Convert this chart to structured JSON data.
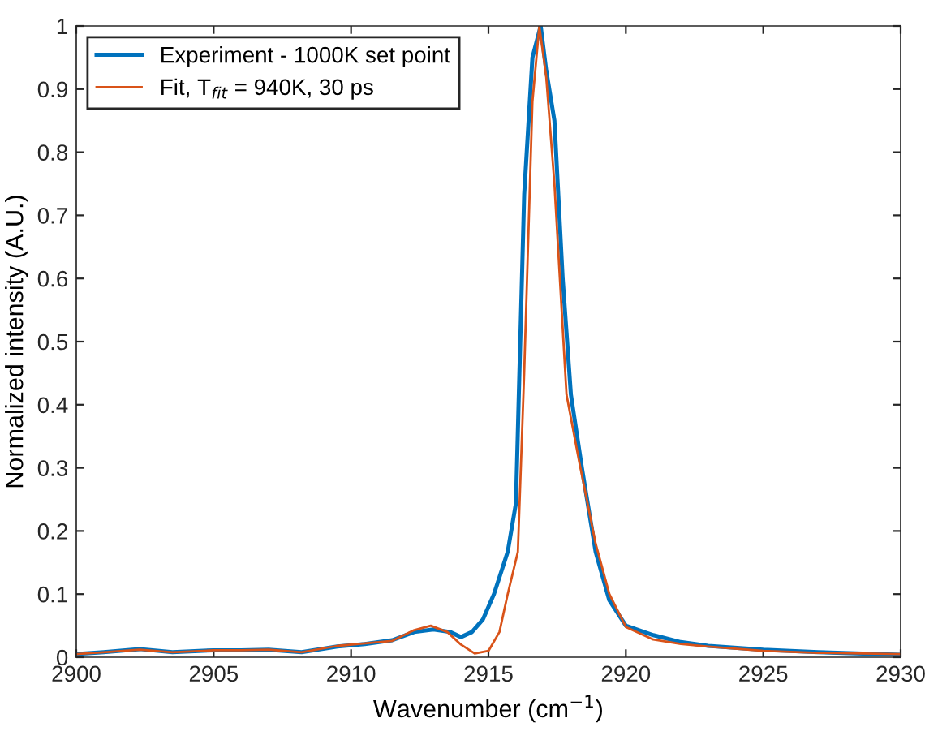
{
  "chart_data": {
    "type": "line",
    "xlabel": "Wavenumber (cm$^{−1}$)",
    "ylabel": "Normalized intensity (A.U.)",
    "xlim": [
      2900,
      2930
    ],
    "ylim": [
      0,
      1
    ],
    "xticks": [
      2900,
      2905,
      2910,
      2915,
      2920,
      2925,
      2930
    ],
    "yticks": [
      0,
      0.1,
      0.2,
      0.3,
      0.4,
      0.5,
      0.6,
      0.7,
      0.8,
      0.9,
      1
    ],
    "legend": "top left",
    "grid": false,
    "series": [
      {
        "name": "Experiment - 1000K set point",
        "color": "#0072bd",
        "x": [
          2900,
          2901,
          2902.3,
          2903.5,
          2905,
          2906,
          2907,
          2908.2,
          2909.5,
          2910.5,
          2911.5,
          2912.3,
          2913,
          2913.6,
          2914,
          2914.4,
          2914.8,
          2915.2,
          2915.5,
          2915.7,
          2916.0,
          2916.3,
          2916.6,
          2916.9,
          2917.1,
          2917.4,
          2917.7,
          2918.0,
          2918.4,
          2918.9,
          2919.4,
          2920,
          2921,
          2922,
          2923,
          2925,
          2927,
          2930
        ],
        "values": [
          0.005,
          0.008,
          0.013,
          0.008,
          0.011,
          0.011,
          0.012,
          0.008,
          0.017,
          0.021,
          0.027,
          0.04,
          0.044,
          0.04,
          0.032,
          0.04,
          0.06,
          0.1,
          0.14,
          0.167,
          0.244,
          0.733,
          0.95,
          1.0,
          0.93,
          0.85,
          0.6,
          0.416,
          0.3,
          0.167,
          0.09,
          0.05,
          0.035,
          0.024,
          0.018,
          0.012,
          0.008,
          0.004
        ]
      },
      {
        "name": "Fit, T$_{fit}$ = 940K, 30 ps",
        "color": "#d95319",
        "x": [
          2900,
          2901,
          2902.3,
          2903.5,
          2905,
          2906,
          2907,
          2908.2,
          2909.5,
          2910.5,
          2911.5,
          2912.3,
          2912.9,
          2913.5,
          2914,
          2914.5,
          2915,
          2915.4,
          2915.7,
          2916.07,
          2916.3,
          2916.6,
          2916.85,
          2917.1,
          2917.4,
          2917.84,
          2918.3,
          2918.9,
          2919.4,
          2920,
          2921,
          2922,
          2923,
          2925,
          2927,
          2930
        ],
        "values": [
          0.005,
          0.008,
          0.012,
          0.008,
          0.011,
          0.011,
          0.012,
          0.008,
          0.018,
          0.022,
          0.026,
          0.043,
          0.05,
          0.04,
          0.02,
          0.006,
          0.01,
          0.04,
          0.1,
          0.167,
          0.45,
          0.88,
          1.0,
          0.92,
          0.75,
          0.416,
          0.31,
          0.18,
          0.1,
          0.048,
          0.028,
          0.021,
          0.017,
          0.01,
          0.007,
          0.005
        ]
      }
    ]
  }
}
